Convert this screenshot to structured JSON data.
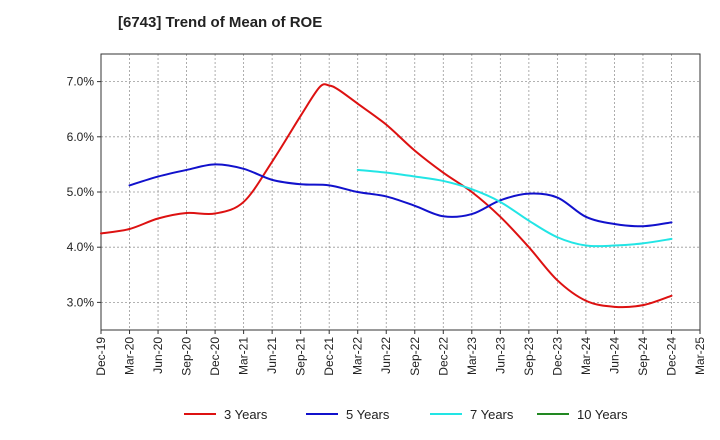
{
  "chart_data": {
    "type": "line",
    "title": "[6743]  Trend of Mean of ROE",
    "xlabel": "",
    "ylabel": "",
    "ylim": [
      2.5,
      7.5
    ],
    "y_ticks": [
      "3.0%",
      "4.0%",
      "5.0%",
      "6.0%",
      "7.0%"
    ],
    "y_tick_values": [
      3.0,
      4.0,
      5.0,
      6.0,
      7.0
    ],
    "x_ticks": [
      "Dec-19",
      "Mar-20",
      "Jun-20",
      "Sep-20",
      "Dec-20",
      "Mar-21",
      "Jun-21",
      "Sep-21",
      "Dec-21",
      "Mar-22",
      "Jun-22",
      "Sep-22",
      "Dec-22",
      "Mar-23",
      "Jun-23",
      "Sep-23",
      "Dec-23",
      "Mar-24",
      "Jun-24",
      "Sep-24",
      "Dec-24",
      "Mar-25"
    ],
    "grid": true,
    "legend_position": "bottom",
    "series": [
      {
        "name": "3 Years",
        "color": "#dd1111",
        "points": [
          [
            "Dec-19",
            4.25
          ],
          [
            "Mar-20",
            4.33
          ],
          [
            "Jun-20",
            4.52
          ],
          [
            "Sep-20",
            4.62
          ],
          [
            "Dec-20",
            4.61
          ],
          [
            "Mar-21",
            4.82
          ],
          [
            "Jun-21",
            5.55
          ],
          [
            "Sep-21",
            6.38
          ],
          [
            "Nov-21",
            6.9
          ],
          [
            "Dec-21",
            6.93
          ],
          [
            "Jan-22",
            6.85
          ],
          [
            "Mar-22",
            6.6
          ],
          [
            "Jun-22",
            6.22
          ],
          [
            "Sep-22",
            5.75
          ],
          [
            "Dec-22",
            5.35
          ],
          [
            "Mar-23",
            5.0
          ],
          [
            "Jun-23",
            4.55
          ],
          [
            "Sep-23",
            4.0
          ],
          [
            "Dec-23",
            3.4
          ],
          [
            "Mar-24",
            3.03
          ],
          [
            "Jun-24",
            2.92
          ],
          [
            "Sep-24",
            2.95
          ],
          [
            "Dec-24",
            3.12
          ]
        ]
      },
      {
        "name": "5 Years",
        "color": "#1111cc",
        "points": [
          [
            "Mar-20",
            5.12
          ],
          [
            "Jun-20",
            5.28
          ],
          [
            "Sep-20",
            5.4
          ],
          [
            "Dec-20",
            5.5
          ],
          [
            "Mar-21",
            5.42
          ],
          [
            "Jun-21",
            5.22
          ],
          [
            "Sep-21",
            5.14
          ],
          [
            "Dec-21",
            5.12
          ],
          [
            "Mar-22",
            5.0
          ],
          [
            "Jun-22",
            4.92
          ],
          [
            "Sep-22",
            4.75
          ],
          [
            "Dec-22",
            4.56
          ],
          [
            "Mar-23",
            4.6
          ],
          [
            "Jun-23",
            4.85
          ],
          [
            "Sep-23",
            4.97
          ],
          [
            "Dec-23",
            4.9
          ],
          [
            "Mar-24",
            4.55
          ],
          [
            "Jun-24",
            4.42
          ],
          [
            "Sep-24",
            4.38
          ],
          [
            "Dec-24",
            4.45
          ]
        ]
      },
      {
        "name": "7 Years",
        "color": "#22e5e5",
        "points": [
          [
            "Mar-22",
            5.4
          ],
          [
            "Jun-22",
            5.35
          ],
          [
            "Sep-22",
            5.28
          ],
          [
            "Dec-22",
            5.2
          ],
          [
            "Mar-23",
            5.05
          ],
          [
            "Jun-23",
            4.82
          ],
          [
            "Sep-23",
            4.48
          ],
          [
            "Dec-23",
            4.18
          ],
          [
            "Mar-24",
            4.03
          ],
          [
            "Jun-24",
            4.03
          ],
          [
            "Sep-24",
            4.07
          ],
          [
            "Dec-24",
            4.15
          ]
        ]
      },
      {
        "name": "10 Years",
        "color": "#228822",
        "points": []
      }
    ]
  }
}
